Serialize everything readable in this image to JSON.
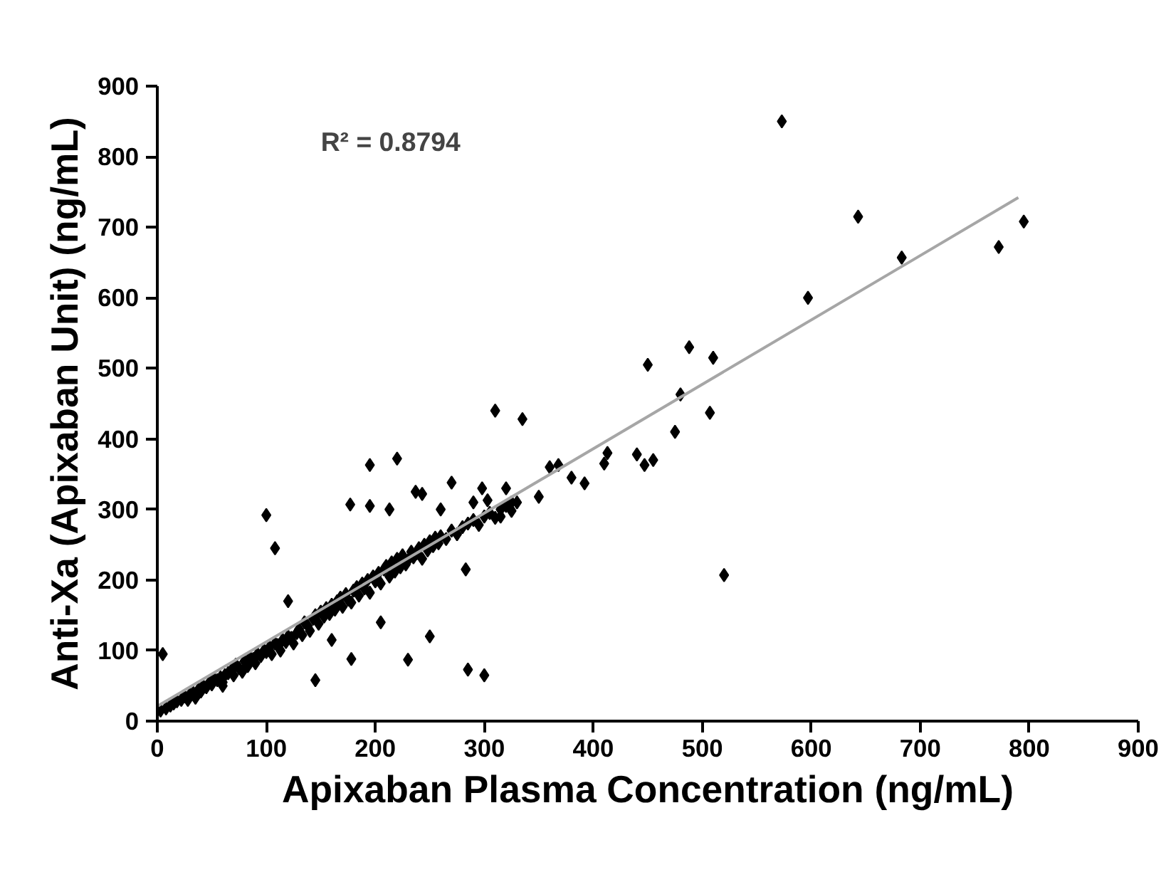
{
  "chart_data": {
    "type": "scatter",
    "xlabel": "Apixaban Plasma Concentration (ng/mL)",
    "ylabel": "Anti-Xa (Apixaban Unit) (ng/mL)",
    "annotations": [
      "R² = 0.8794"
    ],
    "xlim": [
      0,
      900
    ],
    "ylim": [
      0,
      900
    ],
    "xticks": [
      0,
      100,
      200,
      300,
      400,
      500,
      600,
      700,
      800,
      900
    ],
    "yticks": [
      0,
      100,
      200,
      300,
      400,
      500,
      600,
      700,
      800,
      900
    ],
    "grid": false,
    "series": [
      {
        "marker": "diamond",
        "color": "#000000",
        "x": [
          3,
          8,
          12,
          15,
          18,
          22,
          25,
          28,
          30,
          33,
          35,
          38,
          40,
          42,
          45,
          48,
          50,
          52,
          55,
          58,
          60,
          62,
          65,
          68,
          70,
          72,
          75,
          78,
          80,
          83,
          85,
          88,
          90,
          92,
          95,
          98,
          100,
          103,
          105,
          108,
          110,
          113,
          115,
          118,
          120,
          123,
          125,
          128,
          130,
          133,
          135,
          138,
          140,
          143,
          145,
          148,
          150,
          153,
          155,
          158,
          160,
          163,
          165,
          168,
          170,
          173,
          175,
          178,
          180,
          183,
          185,
          188,
          190,
          193,
          195,
          198,
          200,
          203,
          205,
          208,
          210,
          213,
          215,
          218,
          220,
          223,
          225,
          228,
          230,
          233,
          235,
          238,
          240,
          243,
          245,
          248,
          250,
          253,
          255,
          258,
          260,
          265,
          270,
          275,
          280,
          285,
          290,
          295,
          300,
          305,
          310,
          315,
          320,
          325,
          330,
          5,
          100,
          108,
          145,
          178,
          195,
          220,
          177,
          237,
          243,
          270,
          290,
          260,
          213,
          195,
          230,
          285,
          300,
          283,
          298,
          303,
          315,
          325,
          320,
          310,
          335,
          350,
          360,
          368,
          380,
          392,
          410,
          413,
          440,
          447,
          455,
          475,
          450,
          488,
          480,
          510,
          507,
          520,
          573,
          597,
          643,
          683,
          772,
          795,
          60,
          120,
          160,
          205,
          250
        ],
        "values": [
          15,
          18,
          22,
          25,
          28,
          30,
          35,
          30,
          38,
          40,
          33,
          45,
          42,
          50,
          48,
          55,
          52,
          60,
          58,
          62,
          55,
          65,
          68,
          72,
          65,
          80,
          75,
          70,
          85,
          78,
          90,
          88,
          82,
          95,
          92,
          100,
          98,
          105,
          95,
          110,
          108,
          100,
          115,
          112,
          120,
          118,
          110,
          125,
          130,
          122,
          140,
          135,
          128,
          145,
          150,
          138,
          155,
          148,
          160,
          152,
          165,
          158,
          170,
          175,
          162,
          180,
          172,
          168,
          185,
          190,
          178,
          195,
          188,
          200,
          182,
          205,
          198,
          210,
          195,
          215,
          220,
          205,
          225,
          212,
          230,
          218,
          235,
          222,
          228,
          240,
          232,
          238,
          245,
          230,
          250,
          242,
          255,
          248,
          260,
          252,
          262,
          258,
          270,
          265,
          275,
          280,
          285,
          278,
          290,
          295,
          288,
          300,
          305,
          298,
          310,
          95,
          292,
          245,
          58,
          88,
          363,
          372,
          307,
          325,
          322,
          338,
          310,
          300,
          300,
          305,
          87,
          73,
          65,
          215,
          330,
          313,
          290,
          310,
          330,
          440,
          428,
          318,
          360,
          363,
          345,
          337,
          365,
          380,
          378,
          363,
          370,
          410,
          505,
          530,
          463,
          515,
          437,
          207,
          850,
          600,
          715,
          657,
          672,
          708,
          50,
          170,
          115,
          140,
          120
        ]
      },
      {
        "type": "line",
        "color": "#a6a6a6",
        "x": [
          0,
          790
        ],
        "values": [
          21,
          742
        ]
      }
    ]
  }
}
